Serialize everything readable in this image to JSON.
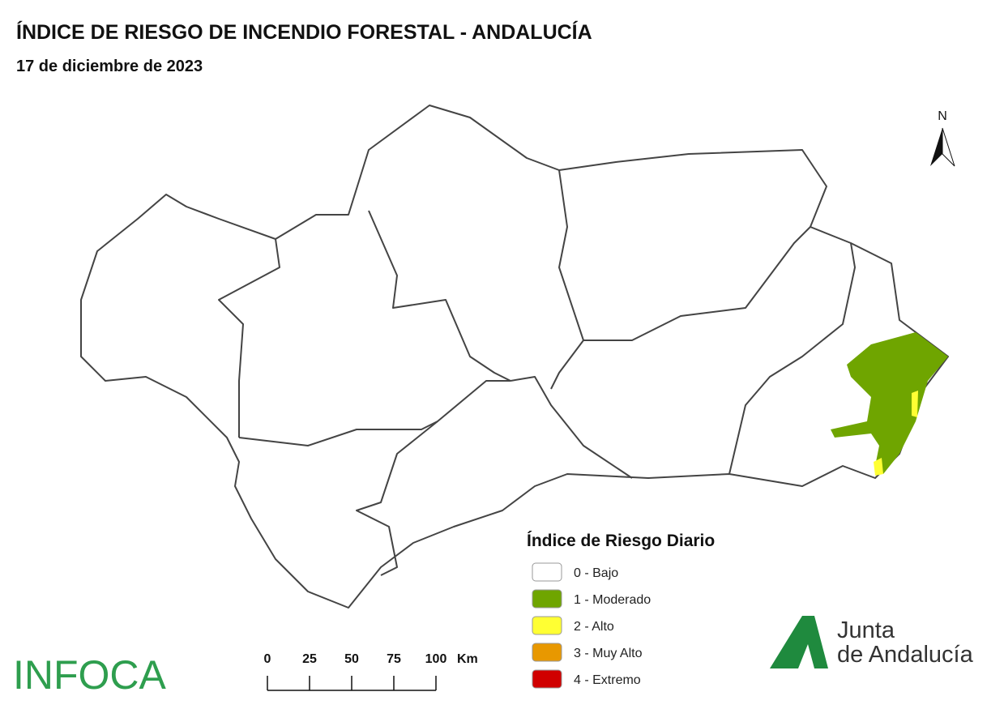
{
  "header": {
    "title": "ÍNDICE DE RIESGO DE INCENDIO FORESTAL - ANDALUCÍA",
    "subtitle": "17 de diciembre de 2023"
  },
  "north_arrow": "N",
  "legend": {
    "title": "Índice de Riesgo Diario",
    "items": [
      {
        "label": "0 - Bajo",
        "color": "#ffffff"
      },
      {
        "label": "1 - Moderado",
        "color": "#6fa500"
      },
      {
        "label": "2 - Alto",
        "color": "#ffff33"
      },
      {
        "label": "3 - Muy Alto",
        "color": "#e89800"
      },
      {
        "label": "4 - Extremo",
        "color": "#d00000"
      }
    ]
  },
  "scale_bar": {
    "ticks": [
      0,
      25,
      50,
      75,
      100
    ],
    "unit": "Km"
  },
  "logos": {
    "infoca": "INFOCA",
    "junta_line1": "Junta",
    "junta_line2": "de Andalucía"
  }
}
